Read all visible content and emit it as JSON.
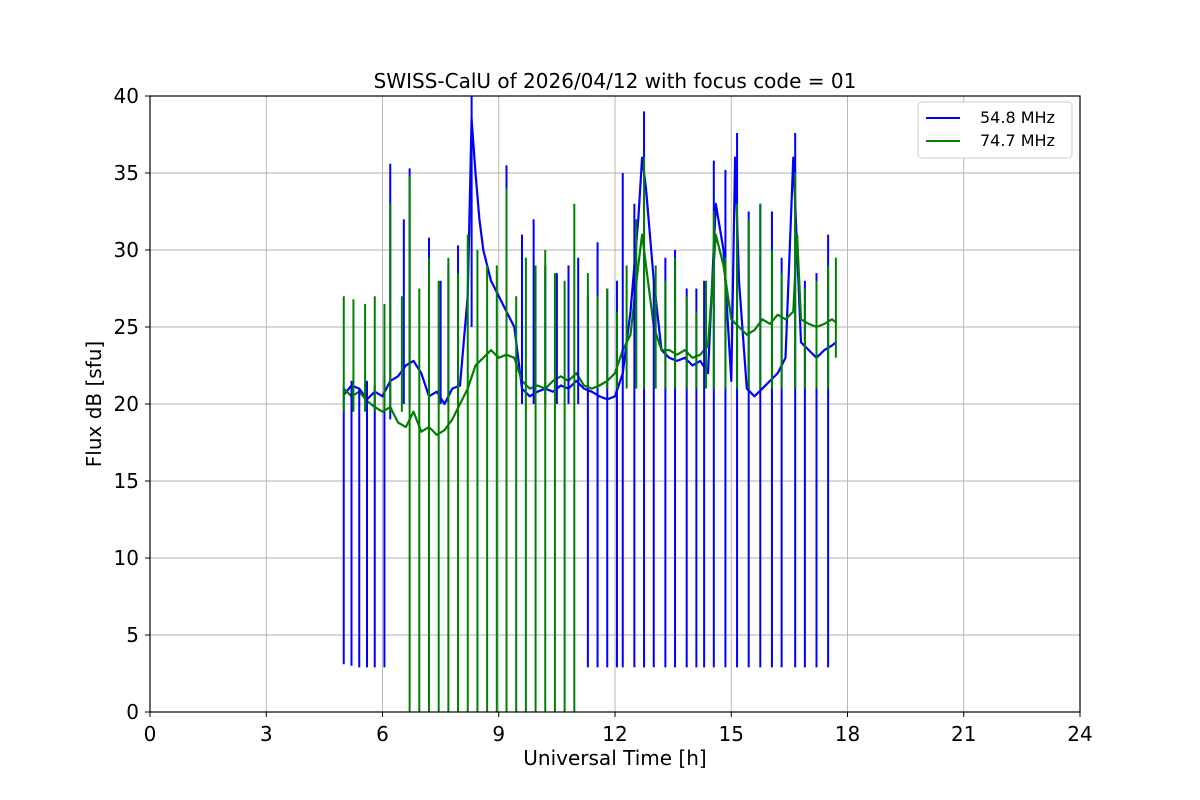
{
  "chart_data": {
    "type": "line",
    "title": "SWISS-CalU of 2026/04/12 with focus code = 01",
    "xlabel": "Universal Time [h]",
    "ylabel": "Flux dB [sfu]",
    "xlim": [
      0,
      24
    ],
    "ylim": [
      0,
      40
    ],
    "xticks": [
      0,
      3,
      6,
      9,
      12,
      15,
      18,
      21,
      24
    ],
    "yticks": [
      0,
      5,
      10,
      15,
      20,
      25,
      30,
      35,
      40
    ],
    "xtick_labels": [
      "0",
      "3",
      "6",
      "9",
      "12",
      "15",
      "18",
      "21",
      "24"
    ],
    "ytick_labels": [
      "0",
      "5",
      "10",
      "15",
      "20",
      "25",
      "30",
      "35",
      "40"
    ],
    "grid": true,
    "legend_position": "top-right",
    "series": [
      {
        "name": "54.8 MHz",
        "color": "#0000ff",
        "values": [
          [
            5.0,
            20.6
          ],
          [
            5.2,
            21.2
          ],
          [
            5.4,
            21.0
          ],
          [
            5.6,
            20.3
          ],
          [
            5.8,
            20.8
          ],
          [
            6.0,
            20.5
          ],
          [
            6.2,
            21.5
          ],
          [
            6.4,
            21.8
          ],
          [
            6.6,
            22.5
          ],
          [
            6.8,
            22.8
          ],
          [
            7.0,
            22.0
          ],
          [
            7.2,
            20.5
          ],
          [
            7.4,
            20.8
          ],
          [
            7.6,
            20.0
          ],
          [
            7.8,
            21.0
          ],
          [
            8.0,
            21.2
          ],
          [
            8.2,
            27.0
          ],
          [
            8.3,
            38.5
          ],
          [
            8.4,
            35.0
          ],
          [
            8.5,
            32.0
          ],
          [
            8.6,
            30.0
          ],
          [
            8.8,
            28.0
          ],
          [
            9.0,
            27.0
          ],
          [
            9.2,
            26.0
          ],
          [
            9.4,
            25.0
          ],
          [
            9.6,
            21.0
          ],
          [
            9.8,
            20.5
          ],
          [
            10.0,
            20.8
          ],
          [
            10.2,
            21.0
          ],
          [
            10.4,
            20.8
          ],
          [
            10.6,
            21.2
          ],
          [
            10.8,
            21.0
          ],
          [
            11.0,
            21.5
          ],
          [
            11.2,
            21.0
          ],
          [
            11.4,
            20.8
          ],
          [
            11.6,
            20.5
          ],
          [
            11.8,
            20.3
          ],
          [
            12.0,
            20.5
          ],
          [
            12.2,
            22.0
          ],
          [
            12.4,
            26.0
          ],
          [
            12.6,
            32.0
          ],
          [
            12.7,
            36.0
          ],
          [
            12.8,
            34.0
          ],
          [
            13.0,
            28.0
          ],
          [
            13.2,
            23.5
          ],
          [
            13.4,
            23.0
          ],
          [
            13.6,
            22.8
          ],
          [
            13.8,
            23.0
          ],
          [
            14.0,
            22.5
          ],
          [
            14.2,
            22.8
          ],
          [
            14.4,
            22.0
          ],
          [
            14.6,
            33.0
          ],
          [
            14.8,
            30.0
          ],
          [
            15.0,
            21.5
          ],
          [
            15.1,
            36.0
          ],
          [
            15.2,
            28.0
          ],
          [
            15.4,
            21.0
          ],
          [
            15.6,
            20.5
          ],
          [
            15.8,
            21.0
          ],
          [
            16.0,
            21.5
          ],
          [
            16.2,
            22.0
          ],
          [
            16.4,
            23.0
          ],
          [
            16.6,
            36.0
          ],
          [
            16.7,
            30.0
          ],
          [
            16.8,
            24.0
          ],
          [
            17.0,
            23.5
          ],
          [
            17.2,
            23.0
          ],
          [
            17.4,
            23.5
          ],
          [
            17.6,
            23.8
          ],
          [
            17.7,
            24.0
          ]
        ]
      },
      {
        "name": "74.7 MHz",
        "color": "#008000",
        "values": [
          [
            5.0,
            21.0
          ],
          [
            5.2,
            20.5
          ],
          [
            5.4,
            20.8
          ],
          [
            5.6,
            20.2
          ],
          [
            5.8,
            19.8
          ],
          [
            6.0,
            19.5
          ],
          [
            6.2,
            19.8
          ],
          [
            6.4,
            18.8
          ],
          [
            6.6,
            18.5
          ],
          [
            6.8,
            19.5
          ],
          [
            7.0,
            18.2
          ],
          [
            7.2,
            18.5
          ],
          [
            7.4,
            18.0
          ],
          [
            7.6,
            18.3
          ],
          [
            7.8,
            19.0
          ],
          [
            8.0,
            20.0
          ],
          [
            8.2,
            21.0
          ],
          [
            8.4,
            22.5
          ],
          [
            8.6,
            23.0
          ],
          [
            8.8,
            23.5
          ],
          [
            9.0,
            23.0
          ],
          [
            9.2,
            23.2
          ],
          [
            9.4,
            23.0
          ],
          [
            9.6,
            21.5
          ],
          [
            9.8,
            21.0
          ],
          [
            10.0,
            21.2
          ],
          [
            10.2,
            21.0
          ],
          [
            10.4,
            21.5
          ],
          [
            10.6,
            21.8
          ],
          [
            10.8,
            21.5
          ],
          [
            11.0,
            22.0
          ],
          [
            11.2,
            21.2
          ],
          [
            11.4,
            21.0
          ],
          [
            11.6,
            21.2
          ],
          [
            11.8,
            21.5
          ],
          [
            12.0,
            22.0
          ],
          [
            12.2,
            23.5
          ],
          [
            12.4,
            24.5
          ],
          [
            12.6,
            29.0
          ],
          [
            12.7,
            31.0
          ],
          [
            12.8,
            29.0
          ],
          [
            13.0,
            25.0
          ],
          [
            13.2,
            23.5
          ],
          [
            13.4,
            23.5
          ],
          [
            13.6,
            23.2
          ],
          [
            13.8,
            23.5
          ],
          [
            14.0,
            23.0
          ],
          [
            14.2,
            23.2
          ],
          [
            14.4,
            23.8
          ],
          [
            14.6,
            31.0
          ],
          [
            14.8,
            29.0
          ],
          [
            15.0,
            25.5
          ],
          [
            15.2,
            25.0
          ],
          [
            15.4,
            24.5
          ],
          [
            15.6,
            24.8
          ],
          [
            15.8,
            25.5
          ],
          [
            16.0,
            25.2
          ],
          [
            16.2,
            25.8
          ],
          [
            16.4,
            25.5
          ],
          [
            16.6,
            26.0
          ],
          [
            16.7,
            31.0
          ],
          [
            16.8,
            25.5
          ],
          [
            17.0,
            25.2
          ],
          [
            17.2,
            25.0
          ],
          [
            17.4,
            25.2
          ],
          [
            17.6,
            25.5
          ],
          [
            17.7,
            25.3
          ]
        ]
      }
    ],
    "spikes": [
      {
        "series": "54.8 MHz",
        "color": "#0000ff",
        "marks": [
          [
            5.0,
            3.1,
            21.0
          ],
          [
            5.2,
            3.0,
            21.5
          ],
          [
            5.4,
            2.9,
            21.0
          ],
          [
            5.6,
            2.9,
            21.5
          ],
          [
            5.8,
            2.9,
            21.2
          ],
          [
            6.05,
            2.9,
            21.8
          ],
          [
            6.2,
            19.0,
            35.6
          ],
          [
            6.55,
            20.0,
            32.0
          ],
          [
            6.7,
            20.0,
            35.3
          ],
          [
            7.2,
            20.0,
            30.8
          ],
          [
            7.5,
            20.0,
            28.0
          ],
          [
            7.7,
            20.0,
            29.0
          ],
          [
            7.95,
            20.0,
            30.3
          ],
          [
            8.3,
            25.0,
            40.0
          ],
          [
            9.2,
            25.0,
            35.5
          ],
          [
            9.6,
            20.0,
            31.0
          ],
          [
            9.9,
            20.0,
            32.0
          ],
          [
            10.2,
            20.0,
            29.0
          ],
          [
            10.5,
            20.0,
            28.5
          ],
          [
            10.8,
            20.0,
            29.0
          ],
          [
            11.05,
            20.0,
            29.5
          ],
          [
            11.3,
            2.9,
            27.0
          ],
          [
            11.55,
            2.9,
            30.5
          ],
          [
            11.8,
            2.9,
            27.5
          ],
          [
            12.05,
            2.9,
            28.0
          ],
          [
            12.2,
            2.9,
            35.0
          ],
          [
            12.5,
            2.9,
            33.0
          ],
          [
            12.75,
            2.9,
            39.0
          ],
          [
            13.0,
            2.9,
            28.0
          ],
          [
            13.3,
            2.9,
            29.5
          ],
          [
            13.55,
            2.9,
            30.0
          ],
          [
            13.85,
            2.9,
            27.5
          ],
          [
            14.1,
            2.9,
            27.5
          ],
          [
            14.3,
            2.9,
            28.0
          ],
          [
            14.55,
            2.9,
            35.8
          ],
          [
            14.85,
            2.9,
            35.2
          ],
          [
            15.15,
            2.9,
            37.6
          ],
          [
            15.45,
            2.9,
            32.5
          ],
          [
            15.75,
            2.9,
            33.0
          ],
          [
            16.05,
            2.9,
            32.5
          ],
          [
            16.3,
            2.9,
            29.5
          ],
          [
            16.65,
            2.9,
            37.6
          ],
          [
            16.9,
            2.9,
            28.0
          ],
          [
            17.2,
            2.9,
            28.5
          ],
          [
            17.5,
            2.9,
            31.0
          ]
        ]
      },
      {
        "series": "74.7 MHz",
        "color": "#008000",
        "marks": [
          [
            5.0,
            19.5,
            27.0
          ],
          [
            5.25,
            19.5,
            26.8
          ],
          [
            5.55,
            19.5,
            26.5
          ],
          [
            5.8,
            19.5,
            27.0
          ],
          [
            6.05,
            19.5,
            26.5
          ],
          [
            6.2,
            19.5,
            33.0
          ],
          [
            6.5,
            19.5,
            27.0
          ],
          [
            6.7,
            0,
            34.8
          ],
          [
            6.95,
            0,
            27.5
          ],
          [
            7.2,
            0,
            29.5
          ],
          [
            7.45,
            0,
            28.0
          ],
          [
            7.7,
            0,
            29.5
          ],
          [
            7.95,
            0,
            28.5
          ],
          [
            8.2,
            0,
            31.0
          ],
          [
            8.45,
            0,
            30.0
          ],
          [
            8.7,
            0,
            29.0
          ],
          [
            8.95,
            0,
            29.0
          ],
          [
            9.2,
            0,
            34.0
          ],
          [
            9.45,
            0,
            27.0
          ],
          [
            9.7,
            0,
            29.5
          ],
          [
            9.95,
            0,
            29.0
          ],
          [
            10.2,
            0,
            30.0
          ],
          [
            10.45,
            0,
            28.5
          ],
          [
            10.7,
            0,
            28.0
          ],
          [
            10.95,
            0,
            33.0
          ],
          [
            11.3,
            21.0,
            28.5
          ],
          [
            11.55,
            21.0,
            27.0
          ],
          [
            11.8,
            21.0,
            27.5
          ],
          [
            12.05,
            21.0,
            26.0
          ],
          [
            12.3,
            21.0,
            29.0
          ],
          [
            12.55,
            21.0,
            32.0
          ],
          [
            12.75,
            21.0,
            36.0
          ],
          [
            13.05,
            21.0,
            29.0
          ],
          [
            13.3,
            21.0,
            28.0
          ],
          [
            13.55,
            21.0,
            29.5
          ],
          [
            13.85,
            21.0,
            27.0
          ],
          [
            14.1,
            21.0,
            26.0
          ],
          [
            14.35,
            21.0,
            28.0
          ],
          [
            14.55,
            21.0,
            32.5
          ],
          [
            14.85,
            21.0,
            29.5
          ],
          [
            15.15,
            21.0,
            33.0
          ],
          [
            15.45,
            21.0,
            32.0
          ],
          [
            15.75,
            21.0,
            33.0
          ],
          [
            16.05,
            21.0,
            30.0
          ],
          [
            16.3,
            21.0,
            28.5
          ],
          [
            16.65,
            21.0,
            35.0
          ],
          [
            16.9,
            21.0,
            27.5
          ],
          [
            17.2,
            21.0,
            28.0
          ],
          [
            17.5,
            21.0,
            29.0
          ],
          [
            17.7,
            23.0,
            29.5
          ]
        ]
      }
    ]
  }
}
